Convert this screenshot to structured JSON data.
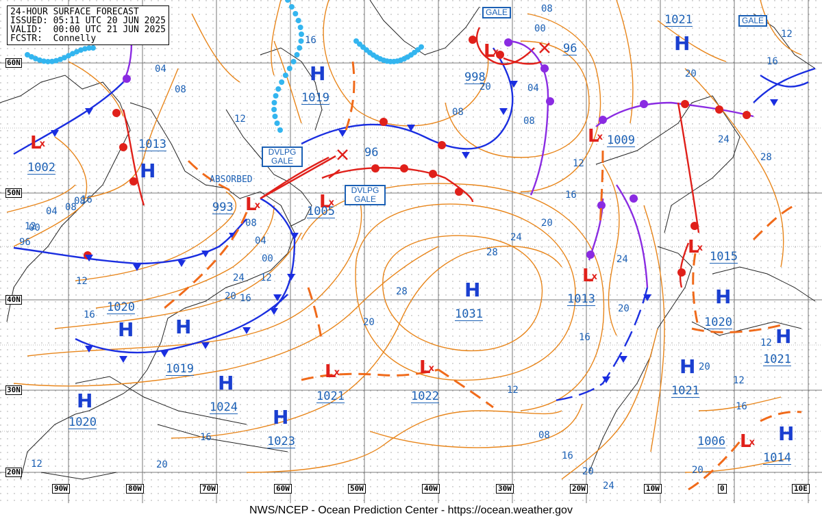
{
  "header": {
    "title": "24-HOUR SURFACE FORECAST",
    "issued": "ISSUED: 05:11 UTC 20 JUN 2025",
    "valid": "VALID:  00:00 UTC 21 JUN 2025",
    "forecaster": "FCSTR:  Connelly"
  },
  "footer": "NWS/NCEP - Ocean Prediction Center - https://ocean.weather.gov",
  "latitudes": [
    "60N",
    "50N",
    "40N",
    "30N",
    "20N"
  ],
  "longitudes": [
    "90W",
    "80W",
    "70W",
    "60W",
    "50W",
    "40W",
    "30W",
    "20W",
    "10W",
    "0",
    "10E"
  ],
  "highs": [
    {
      "symbol": "H",
      "pressure": "1019"
    },
    {
      "symbol": "H",
      "pressure": "1021"
    },
    {
      "symbol": "H",
      "pressure": ""
    },
    {
      "symbol": "H",
      "pressure": "1031"
    },
    {
      "symbol": "H",
      "pressure": "1020"
    },
    {
      "symbol": "H",
      "pressure": "1021"
    },
    {
      "symbol": "H",
      "pressure": "1021"
    },
    {
      "symbol": "H",
      "pressure": "1014"
    },
    {
      "symbol": "H",
      "pressure": "1020"
    },
    {
      "symbol": "H",
      "pressure": "1024"
    },
    {
      "symbol": "H",
      "pressure": "1023"
    },
    {
      "symbol": "H",
      "pressure": "1020"
    },
    {
      "symbol": "H",
      "pressure": ""
    }
  ],
  "lows": [
    {
      "symbol": "L",
      "pressure": "1002"
    },
    {
      "symbol": "L",
      "pressure": "993"
    },
    {
      "symbol": "L",
      "pressure": "1005"
    },
    {
      "symbol": "L",
      "pressure": "998"
    },
    {
      "symbol": "L",
      "pressure": "1009"
    },
    {
      "symbol": "L",
      "pressure": "1013"
    },
    {
      "symbol": "L",
      "pressure": "1015"
    },
    {
      "symbol": "L",
      "pressure": "1021"
    },
    {
      "symbol": "L",
      "pressure": "1022"
    },
    {
      "symbol": "L",
      "pressure": "1006"
    }
  ],
  "extra_pressure_labels": [
    "1013",
    "1019"
  ],
  "future_positions": [
    "96",
    "96"
  ],
  "warnings": [
    "GALE",
    "GALE",
    "DVLPG GALE",
    "DVLPG GALE"
  ],
  "absorbed_label": "ABSORBED",
  "isobar_labels": [
    "16",
    "12",
    "04",
    "08",
    "00",
    "96",
    "04",
    "08",
    "12",
    "16",
    "20",
    "24",
    "28",
    "28",
    "24",
    "20",
    "16",
    "12",
    "08",
    "04",
    "00",
    "08",
    "12",
    "16",
    "20",
    "24",
    "28",
    "24",
    "20",
    "16",
    "12",
    "08",
    "16",
    "20",
    "24",
    "20",
    "16",
    "12",
    "20",
    "12",
    "16",
    "20",
    "12",
    "08",
    "20",
    "16",
    "08",
    "12",
    "00",
    "04",
    "08",
    "12",
    "16",
    "20"
  ],
  "colors": {
    "isobar": "#e8851a",
    "cold_front": "#1a2ee0",
    "warm_front": "#e0201a",
    "occluded_front": "#8a2be2",
    "trough": "#f06a1a",
    "ice": "#33b5ef",
    "grid": "#777777",
    "land": "#222222",
    "label": "#1a5fb4"
  }
}
